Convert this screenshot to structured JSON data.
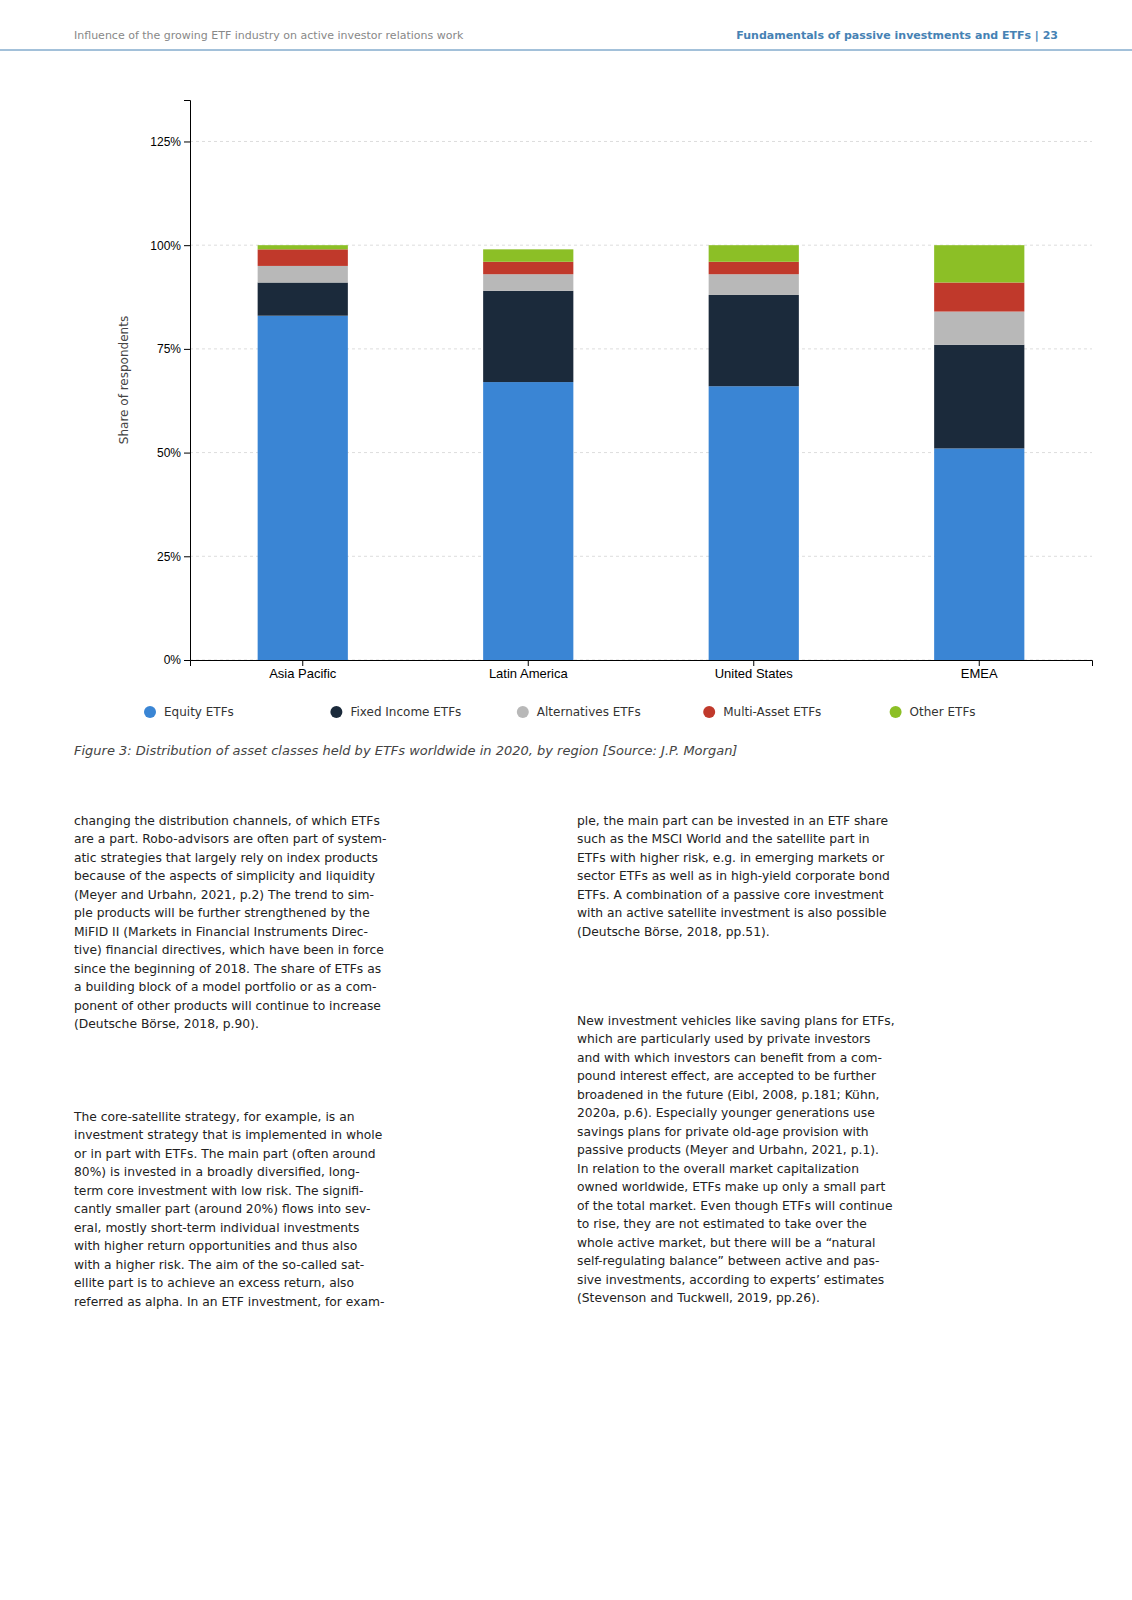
{
  "chart_data": {
    "type": "bar",
    "stacked": true,
    "title": "Figure 3: Distribution of asset classes held by ETFs worldwide in 2020, by region [Source: J.P. Morgan]",
    "ylabel": "Share of respondents",
    "categories": [
      "Asia Pacific",
      "Latin America",
      "United States",
      "EMEA"
    ],
    "series": [
      {
        "name": "Equity ETFs",
        "color": "#3a85d4",
        "values": [
          83,
          67,
          66,
          51
        ]
      },
      {
        "name": "Fixed Income ETFs",
        "color": "#1b2a3b",
        "values": [
          8,
          22,
          22,
          25
        ]
      },
      {
        "name": "Alternatives ETFs",
        "color": "#b8b8b8",
        "values": [
          4,
          4,
          5,
          8
        ]
      },
      {
        "name": "Multi-Asset ETFs",
        "color": "#c0392b",
        "values": [
          4,
          3,
          3,
          7
        ]
      },
      {
        "name": "Other ETFs",
        "color": "#8cbf26",
        "values": [
          1,
          3,
          4,
          9
        ]
      }
    ],
    "ylim": [
      0,
      135
    ],
    "yticks": [
      {
        "value": 0,
        "label": "0%"
      },
      {
        "value": 25,
        "label": "25%"
      },
      {
        "value": 50,
        "label": "50%"
      },
      {
        "value": 75,
        "label": "75%"
      },
      {
        "value": 100,
        "label": "100%"
      },
      {
        "value": 125,
        "label": "125%"
      }
    ],
    "grid": true,
    "legend": "bottom",
    "annotations": [
      "Influence of the growing ETF industry on active investor relations work",
      "Fundamentals of passive investments and ETFs  |  23",
      "changing the distribution channels, of which ETFs\nare a part. Robo-advisors are often part of system-\natic strategies that largely rely on index products\nbecause of the aspects of simplicity and liquidity\n(Meyer and Urbahn, 2021, p.2) The trend to sim-\nple products will be further strengthened by the\nMiFID II (Markets in Financial Instruments Direc-\ntive) financial directives, which have been in force\nsince the beginning of 2018. The share of ETFs as\na building block of a model portfolio or as a com-\nponent of other products will continue to increase\n(Deutsche Börse, 2018, p.90).",
      "ple, the main part can be invested in an ETF share\nsuch as the MSCI World and the satellite part in\nETFs with higher risk, e.g. in emerging markets or\nsector ETFs as well as in high-yield corporate bond\nETFs. A combination of a passive core investment\nwith an active satellite investment is also possible\n(Deutsche Börse, 2018, pp.51).",
      "The core-satellite strategy, for example, is an\ninvestment strategy that is implemented in whole\nor in part with ETFs. The main part (often around\n80%) is invested in a broadly diversified, long-\nterm core investment with low risk. The signifi-\ncantly smaller part (around 20%) flows into sev-\neral, mostly short-term individual investments\nwith higher return opportunities and thus also\nwith a higher risk. The aim of the so-called sat-\nellite part is to achieve an excess return, also\nreferred as alpha. In an ETF investment, for exam-",
      "New investment vehicles like saving plans for ETFs,\nwhich are particularly used by private investors\nand with which investors can benefit from a com-\npound interest effect, are accepted to be further\nbroadened in the future (Eibl, 2008, p.181; Kühn,\n2020a, p.6). Especially younger generations use\nsavings plans for private old-age provision with\npassive products (Meyer and Urbahn, 2021, p.1).\nIn relation to the overall market capitalization\nowned worldwide, ETFs make up only a small part\nof the total market. Even though ETFs will continue\nto rise, they are not estimated to take over the\nwhole active market, but there will be a “natural\nself-regulating balance” between active and pas-\nsive investments, according to experts’ estimates\n(Stevenson and Tuckwell, 2019, pp.26)."
    ]
  }
}
